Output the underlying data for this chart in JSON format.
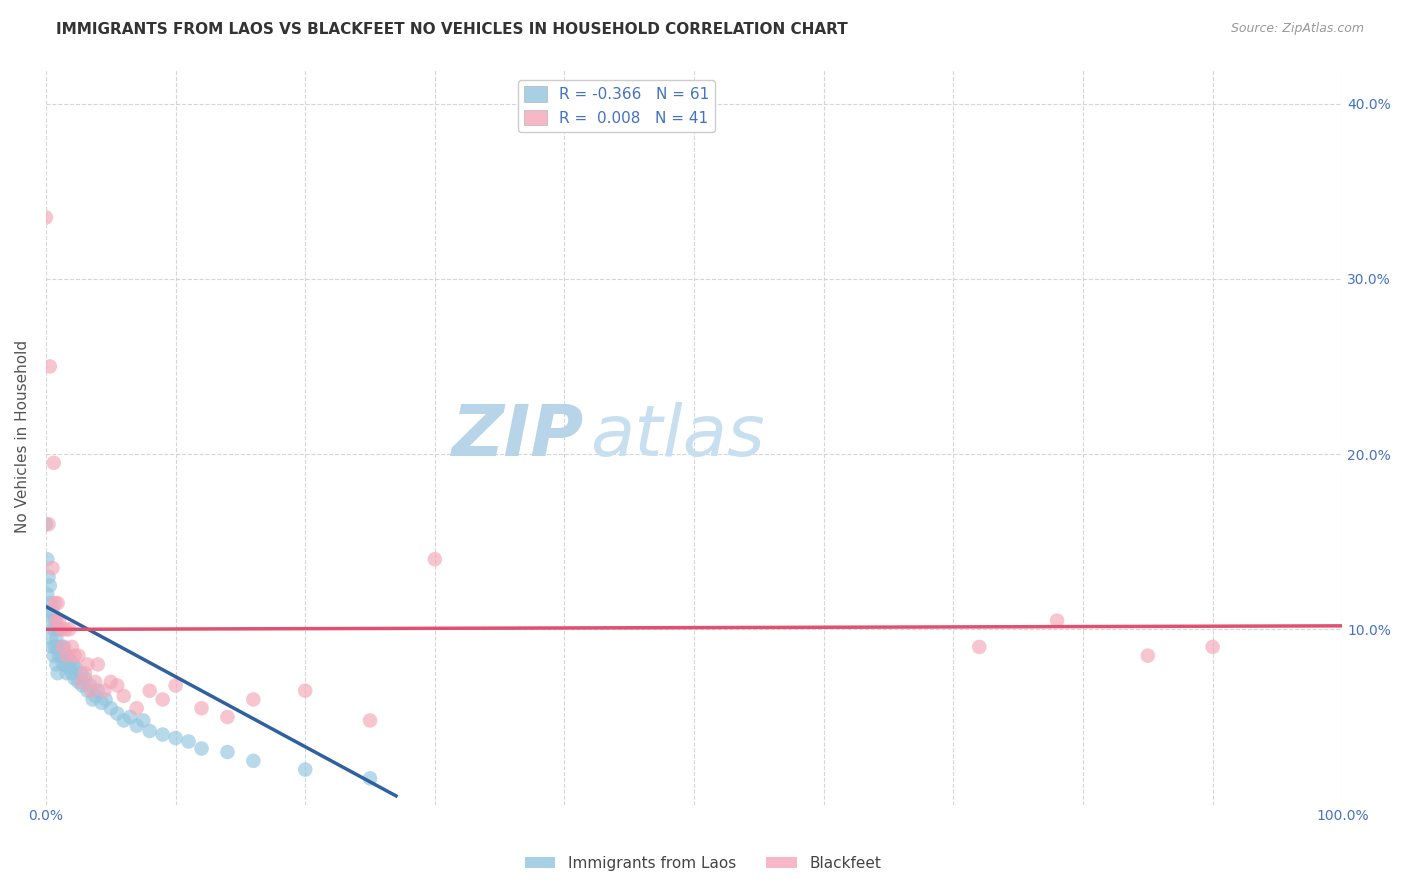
{
  "title": "IMMIGRANTS FROM LAOS VS BLACKFEET NO VEHICLES IN HOUSEHOLD CORRELATION CHART",
  "source": "Source: ZipAtlas.com",
  "xlabel_blue": "Immigrants from Laos",
  "xlabel_pink": "Blackfeet",
  "ylabel": "No Vehicles in Household",
  "xlim": [
    0.0,
    1.0
  ],
  "ylim": [
    0.0,
    0.42
  ],
  "xticks": [
    0.0,
    0.1,
    0.2,
    0.3,
    0.4,
    0.5,
    0.6,
    0.7,
    0.8,
    0.9,
    1.0
  ],
  "ytick_vals": [
    0.0,
    0.1,
    0.2,
    0.3,
    0.4
  ],
  "ytick_labels_right": [
    "",
    "10.0%",
    "20.0%",
    "30.0%",
    "40.0%"
  ],
  "xtick_labels": [
    "0.0%",
    "",
    "",
    "",
    "",
    "",
    "",
    "",
    "",
    "",
    "100.0%"
  ],
  "legend_blue_r": "-0.366",
  "legend_blue_n": "61",
  "legend_pink_r": "0.008",
  "legend_pink_n": "41",
  "blue_color": "#92c5de",
  "pink_color": "#f4a6b8",
  "blue_line_color": "#3060a0",
  "pink_line_color": "#e05070",
  "watermark_zip": "ZIP",
  "watermark_atlas": "atlas",
  "blue_scatter_x": [
    0.0,
    0.001,
    0.001,
    0.002,
    0.002,
    0.003,
    0.003,
    0.004,
    0.004,
    0.005,
    0.005,
    0.006,
    0.006,
    0.007,
    0.007,
    0.008,
    0.008,
    0.009,
    0.009,
    0.01,
    0.01,
    0.011,
    0.012,
    0.013,
    0.014,
    0.015,
    0.015,
    0.016,
    0.017,
    0.018,
    0.019,
    0.02,
    0.021,
    0.022,
    0.023,
    0.025,
    0.027,
    0.028,
    0.03,
    0.032,
    0.034,
    0.036,
    0.038,
    0.04,
    0.043,
    0.046,
    0.05,
    0.055,
    0.06,
    0.065,
    0.07,
    0.075,
    0.08,
    0.09,
    0.1,
    0.11,
    0.12,
    0.14,
    0.16,
    0.2,
    0.25
  ],
  "blue_scatter_y": [
    0.16,
    0.14,
    0.12,
    0.13,
    0.11,
    0.125,
    0.105,
    0.115,
    0.095,
    0.11,
    0.09,
    0.1,
    0.085,
    0.105,
    0.09,
    0.095,
    0.08,
    0.09,
    0.075,
    0.1,
    0.085,
    0.09,
    0.085,
    0.08,
    0.09,
    0.08,
    0.085,
    0.075,
    0.085,
    0.078,
    0.082,
    0.075,
    0.08,
    0.072,
    0.078,
    0.07,
    0.075,
    0.068,
    0.072,
    0.065,
    0.068,
    0.06,
    0.062,
    0.065,
    0.058,
    0.06,
    0.055,
    0.052,
    0.048,
    0.05,
    0.045,
    0.048,
    0.042,
    0.04,
    0.038,
    0.036,
    0.032,
    0.03,
    0.025,
    0.02,
    0.015
  ],
  "pink_scatter_x": [
    0.0,
    0.002,
    0.003,
    0.005,
    0.006,
    0.007,
    0.008,
    0.009,
    0.01,
    0.012,
    0.013,
    0.015,
    0.016,
    0.018,
    0.02,
    0.022,
    0.025,
    0.028,
    0.03,
    0.032,
    0.035,
    0.038,
    0.04,
    0.045,
    0.05,
    0.055,
    0.06,
    0.07,
    0.08,
    0.09,
    0.1,
    0.12,
    0.14,
    0.16,
    0.2,
    0.25,
    0.3,
    0.72,
    0.78,
    0.85,
    0.9
  ],
  "pink_scatter_y": [
    0.335,
    0.16,
    0.25,
    0.135,
    0.195,
    0.115,
    0.105,
    0.115,
    0.105,
    0.1,
    0.09,
    0.1,
    0.085,
    0.1,
    0.09,
    0.085,
    0.085,
    0.07,
    0.075,
    0.08,
    0.065,
    0.07,
    0.08,
    0.065,
    0.07,
    0.068,
    0.062,
    0.055,
    0.065,
    0.06,
    0.068,
    0.055,
    0.05,
    0.06,
    0.065,
    0.048,
    0.14,
    0.09,
    0.105,
    0.085,
    0.09
  ],
  "blue_trendline_x": [
    0.0,
    0.27
  ],
  "blue_trendline_y": [
    0.113,
    0.005
  ],
  "pink_trendline_x": [
    0.0,
    1.0
  ],
  "pink_trendline_y": [
    0.1,
    0.102
  ],
  "grid_color": "#cccccc",
  "bg_color": "#ffffff",
  "title_fontsize": 11,
  "axis_label_fontsize": 11,
  "tick_fontsize": 10,
  "watermark_fontsize_zip": 52,
  "watermark_fontsize_atlas": 52,
  "watermark_color_zip": "#b8d4e8",
  "watermark_color_atlas": "#c8dff0",
  "source_fontsize": 9
}
